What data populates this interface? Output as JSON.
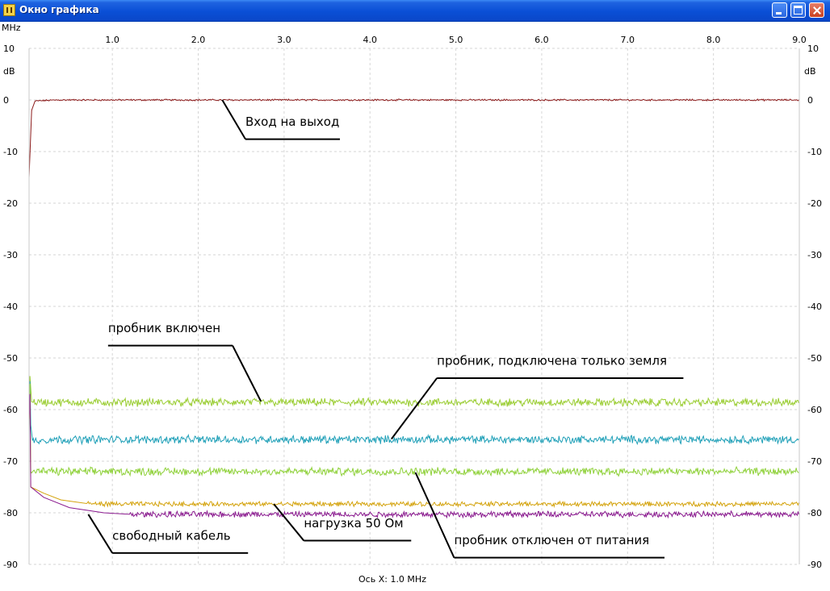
{
  "window": {
    "title": "Окно графика",
    "app_icon": "graph-icon",
    "controls": [
      "minimize-icon",
      "maximize-icon",
      "close-icon"
    ],
    "titlebar_color": "#0a4fd6"
  },
  "chart_data": {
    "type": "line",
    "x_unit": "MHz",
    "y_unit": "dB",
    "xlim": [
      0.03,
      9.0
    ],
    "ylim": [
      -90,
      10
    ],
    "x_ticks": [
      {
        "v": 1.0,
        "label": "1.0"
      },
      {
        "v": 2.0,
        "label": "2.0"
      },
      {
        "v": 3.0,
        "label": "3.0"
      },
      {
        "v": 4.0,
        "label": "4.0"
      },
      {
        "v": 5.0,
        "label": "5.0"
      },
      {
        "v": 6.0,
        "label": "6.0"
      },
      {
        "v": 7.0,
        "label": "7.0"
      },
      {
        "v": 8.0,
        "label": "8.0"
      },
      {
        "v": 9.0,
        "label": "9.0"
      }
    ],
    "y_ticks": [
      {
        "v": 10,
        "label": "10"
      },
      {
        "v": 0,
        "label": "0"
      },
      {
        "v": -10,
        "label": "-10"
      },
      {
        "v": -20,
        "label": "-20"
      },
      {
        "v": -30,
        "label": "-30"
      },
      {
        "v": -40,
        "label": "-40"
      },
      {
        "v": -50,
        "label": "-50"
      },
      {
        "v": -60,
        "label": "-60"
      },
      {
        "v": -70,
        "label": "-70"
      },
      {
        "v": -80,
        "label": "-80"
      },
      {
        "v": -90,
        "label": "-90"
      }
    ],
    "xlabel": "Ось X: 1.0 MHz",
    "grid": "dashed, light gray",
    "series": [
      {
        "label_ref": "Вход на выход",
        "color": "#8b1a1a",
        "baseline": 0.0,
        "noise": 0.12,
        "start": [
          [
            0.03,
            -15.0
          ],
          [
            0.06,
            -2.0
          ],
          [
            0.1,
            -0.2
          ]
        ]
      },
      {
        "label_ref": "пробник включен",
        "color": "#9acd32",
        "baseline": -58.6,
        "noise": 0.6,
        "start": [
          [
            0.03,
            -56.0
          ],
          [
            0.04,
            -53.5
          ],
          [
            0.06,
            -58.5
          ]
        ]
      },
      {
        "label_ref": "пробник, подключена только земля",
        "color": "#20a0b8",
        "baseline": -65.8,
        "noise": 0.6,
        "start": [
          [
            0.03,
            -65.0
          ],
          [
            0.04,
            -54.5
          ],
          [
            0.05,
            -63.0
          ],
          [
            0.07,
            -66.0
          ]
        ]
      },
      {
        "label_ref": "пробник отключен от питания",
        "color": "#8fd13a",
        "baseline": -72.0,
        "noise": 0.6,
        "start": [
          [
            0.03,
            -62.0
          ],
          [
            0.04,
            -55.0
          ],
          [
            0.05,
            -72.0
          ]
        ]
      },
      {
        "label_ref": "нагрузка 50 Ом",
        "color": "#d4a30d",
        "baseline": -78.3,
        "noise": 0.35,
        "start": [
          [
            0.03,
            -62.0
          ],
          [
            0.04,
            -57.0
          ],
          [
            0.05,
            -75.0
          ],
          [
            0.2,
            -76.2
          ],
          [
            0.4,
            -77.5
          ],
          [
            0.7,
            -78.2
          ]
        ]
      },
      {
        "label_ref": "свободный кабель",
        "color": "#8a1a8f",
        "baseline": -80.3,
        "noise": 0.45,
        "start": [
          [
            0.03,
            -62.0
          ],
          [
            0.04,
            -57.0
          ],
          [
            0.05,
            -75.0
          ],
          [
            0.2,
            -77.0
          ],
          [
            0.5,
            -79.0
          ],
          [
            0.9,
            -80.0
          ],
          [
            1.2,
            -80.3
          ]
        ]
      }
    ],
    "annotations": [
      {
        "text": "Вход на выход",
        "text_pos": [
          2.55,
          -5.0
        ],
        "underline": [
          2.55,
          3.65,
          -7.6
        ],
        "leader_from": [
          2.55,
          -7.6
        ],
        "leader_to": [
          2.28,
          0.0
        ]
      },
      {
        "text": "пробник включен",
        "text_pos": [
          0.95,
          -45.0
        ],
        "underline": [
          0.95,
          2.4,
          -47.6
        ],
        "leader_from": [
          2.4,
          -47.6
        ],
        "leader_to": [
          2.73,
          -58.4
        ]
      },
      {
        "text": "пробник, подключена только земля",
        "text_pos": [
          4.78,
          -51.3
        ],
        "underline": [
          4.78,
          7.65,
          -53.9
        ],
        "leader_from": [
          4.78,
          -53.9
        ],
        "leader_to": [
          4.25,
          -65.7
        ]
      },
      {
        "text": "пробник отключен от питания",
        "text_pos": [
          4.98,
          -86.1
        ],
        "underline": [
          4.98,
          7.43,
          -88.7
        ],
        "leader_from": [
          4.98,
          -88.7
        ],
        "leader_to": [
          4.53,
          -72.2
        ]
      },
      {
        "text": "нагрузка 50 Ом",
        "text_pos": [
          3.23,
          -82.8
        ],
        "underline": [
          3.23,
          4.48,
          -85.4
        ],
        "leader_from": [
          3.23,
          -85.4
        ],
        "leader_to": [
          2.88,
          -78.3
        ]
      },
      {
        "text": "свободный кабель",
        "text_pos": [
          1.0,
          -85.2
        ],
        "underline": [
          1.0,
          2.58,
          -87.8
        ],
        "leader_from": [
          1.0,
          -87.8
        ],
        "leader_to": [
          0.72,
          -80.3
        ]
      }
    ]
  }
}
